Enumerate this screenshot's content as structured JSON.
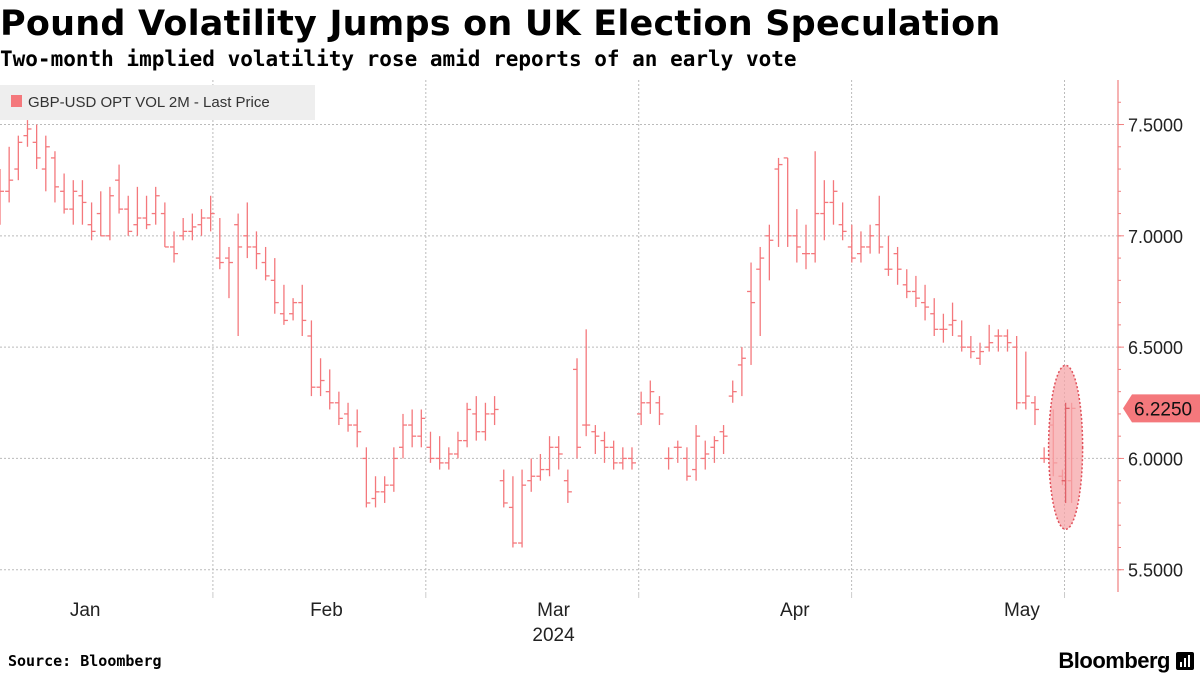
{
  "title": "Pound Volatility Jumps on UK Election Speculation",
  "subtitle": "Two-month implied volatility rose amid reports of an early vote",
  "source": "Source: Bloomberg",
  "brand": "Bloomberg",
  "colors": {
    "series": "#f4787c",
    "legend_bg": "#eeeeee",
    "grid": "#bbbbbb",
    "axis": "#f08080",
    "label_bg": "#f4787c",
    "highlight": "#f5a5a8"
  },
  "chart_data": {
    "type": "bar",
    "subtype": "ohlc",
    "title": "Pound Volatility Jumps on UK Election Speculation",
    "legend": [
      "GBP-USD OPT VOL 2M - Last Price"
    ],
    "legend_position": "top-left",
    "xlabel": "2024",
    "x_ticks": [
      "Jan",
      "Feb",
      "Mar",
      "Apr",
      "May"
    ],
    "y_ticks": [
      "5.5000",
      "6.0000",
      "6.5000",
      "7.0000",
      "7.5000"
    ],
    "ylim": [
      5.4,
      7.7
    ],
    "y_axis_side": "right",
    "last_price_label": "6.2250",
    "last_value": 6.225,
    "highlight": "latest session circled",
    "series": [
      {
        "name": "GBP-USD OPT VOL 2M - Last Price",
        "ohlc": [
          [
            7.1,
            7.3,
            7.05,
            7.2
          ],
          [
            7.2,
            7.4,
            7.15,
            7.25
          ],
          [
            7.3,
            7.45,
            7.25,
            7.42
          ],
          [
            7.45,
            7.52,
            7.4,
            7.48
          ],
          [
            7.42,
            7.5,
            7.3,
            7.35
          ],
          [
            7.3,
            7.45,
            7.2,
            7.4
          ],
          [
            7.35,
            7.38,
            7.15,
            7.22
          ],
          [
            7.2,
            7.28,
            7.1,
            7.12
          ],
          [
            7.12,
            7.25,
            7.05,
            7.2
          ],
          [
            7.18,
            7.25,
            7.05,
            7.15
          ],
          [
            7.05,
            7.15,
            6.98,
            7.02
          ],
          [
            7.1,
            7.2,
            7.0,
            7.0
          ],
          [
            7.0,
            7.22,
            6.98,
            7.18
          ],
          [
            7.25,
            7.32,
            7.1,
            7.12
          ],
          [
            7.12,
            7.18,
            7.0,
            7.02
          ],
          [
            7.05,
            7.22,
            7.0,
            7.08
          ],
          [
            7.08,
            7.18,
            7.03,
            7.05
          ],
          [
            7.1,
            7.22,
            7.05,
            7.18
          ],
          [
            7.1,
            7.15,
            6.95,
            6.95
          ],
          [
            6.95,
            7.02,
            6.88,
            6.92
          ],
          [
            7.0,
            7.08,
            6.98,
            7.02
          ],
          [
            7.02,
            7.1,
            6.98,
            7.04
          ],
          [
            7.05,
            7.12,
            7.0,
            7.08
          ],
          [
            7.08,
            7.18,
            7.02,
            7.1
          ],
          [
            6.9,
            7.08,
            6.85,
            6.88
          ],
          [
            6.9,
            6.95,
            6.72,
            6.88
          ],
          [
            7.05,
            7.1,
            6.55,
            6.95
          ],
          [
            7.0,
            7.15,
            6.9,
            6.95
          ],
          [
            6.95,
            7.02,
            6.85,
            6.92
          ],
          [
            6.88,
            6.95,
            6.8,
            6.82
          ],
          [
            6.8,
            6.9,
            6.65,
            6.7
          ],
          [
            6.65,
            6.78,
            6.6,
            6.62
          ],
          [
            6.65,
            6.72,
            6.62,
            6.7
          ],
          [
            6.7,
            6.78,
            6.55,
            6.62
          ],
          [
            6.55,
            6.62,
            6.28,
            6.32
          ],
          [
            6.32,
            6.45,
            6.28,
            6.35
          ],
          [
            6.3,
            6.4,
            6.22,
            6.25
          ],
          [
            6.25,
            6.3,
            6.15,
            6.18
          ],
          [
            6.2,
            6.25,
            6.12,
            6.15
          ],
          [
            6.15,
            6.22,
            6.05,
            6.12
          ],
          [
            6.0,
            6.05,
            5.78,
            5.8
          ],
          [
            5.82,
            5.92,
            5.78,
            5.85
          ],
          [
            5.85,
            5.92,
            5.8,
            5.88
          ],
          [
            5.88,
            6.05,
            5.85,
            6.0
          ],
          [
            6.05,
            6.2,
            6.0,
            6.15
          ],
          [
            6.15,
            6.22,
            6.05,
            6.1
          ],
          [
            6.1,
            6.22,
            6.05,
            6.18
          ],
          [
            6.05,
            6.12,
            5.98,
            6.0
          ],
          [
            6.0,
            6.1,
            5.95,
            5.98
          ],
          [
            5.98,
            6.05,
            5.95,
            6.02
          ],
          [
            6.02,
            6.12,
            6.0,
            6.08
          ],
          [
            6.08,
            6.25,
            6.05,
            6.22
          ],
          [
            6.2,
            6.28,
            6.08,
            6.12
          ],
          [
            6.12,
            6.25,
            6.08,
            6.2
          ],
          [
            6.2,
            6.28,
            6.15,
            6.22
          ],
          [
            5.9,
            5.95,
            5.78,
            5.8
          ],
          [
            5.78,
            5.92,
            5.6,
            5.62
          ],
          [
            5.62,
            5.95,
            5.6,
            5.88
          ],
          [
            5.9,
            6.0,
            5.85,
            5.92
          ],
          [
            5.92,
            6.02,
            5.9,
            5.95
          ],
          [
            5.95,
            6.1,
            5.92,
            6.05
          ],
          [
            6.05,
            6.1,
            5.95,
            6.02
          ],
          [
            5.9,
            5.95,
            5.8,
            5.85
          ],
          [
            6.4,
            6.45,
            6.0,
            6.05
          ],
          [
            6.15,
            6.58,
            6.1,
            6.15
          ],
          [
            6.12,
            6.15,
            6.02,
            6.1
          ],
          [
            6.08,
            6.12,
            5.98,
            6.05
          ],
          [
            6.05,
            6.08,
            5.95,
            5.98
          ],
          [
            5.98,
            6.05,
            5.95,
            6.0
          ],
          [
            6.0,
            6.05,
            5.95,
            5.98
          ],
          [
            6.2,
            6.3,
            6.15,
            6.25
          ],
          [
            6.25,
            6.35,
            6.2,
            6.3
          ],
          [
            6.25,
            6.28,
            6.15,
            6.2
          ],
          [
            6.0,
            6.05,
            5.95,
            6.0
          ],
          [
            6.05,
            6.08,
            5.98,
            6.05
          ],
          [
            6.0,
            6.05,
            5.9,
            5.92
          ],
          [
            5.95,
            6.15,
            5.9,
            6.1
          ],
          [
            6.0,
            6.08,
            5.95,
            6.02
          ],
          [
            6.05,
            6.1,
            5.98,
            6.08
          ],
          [
            6.12,
            6.15,
            6.02,
            6.1
          ],
          [
            6.28,
            6.35,
            6.25,
            6.3
          ],
          [
            6.42,
            6.5,
            6.28,
            6.45
          ],
          [
            6.75,
            6.88,
            6.42,
            6.7
          ],
          [
            6.85,
            6.95,
            6.55,
            6.9
          ],
          [
            7.0,
            7.05,
            6.8,
            6.98
          ],
          [
            7.3,
            7.35,
            6.95,
            7.32
          ],
          [
            7.35,
            7.35,
            6.95,
            7.0
          ],
          [
            7.0,
            7.12,
            6.88,
            6.95
          ],
          [
            6.92,
            7.05,
            6.85,
            6.92
          ],
          [
            6.92,
            7.38,
            6.88,
            7.1
          ],
          [
            7.1,
            7.25,
            6.98,
            7.15
          ],
          [
            7.15,
            7.25,
            7.05,
            7.2
          ],
          [
            7.05,
            7.15,
            6.98,
            7.02
          ],
          [
            6.95,
            7.05,
            6.88,
            6.9
          ],
          [
            6.92,
            7.02,
            6.88,
            6.95
          ],
          [
            6.95,
            7.05,
            6.92,
            7.0
          ],
          [
            7.05,
            7.18,
            6.92,
            6.95
          ],
          [
            6.85,
            7.0,
            6.82,
            6.85
          ],
          [
            6.92,
            6.95,
            6.78,
            6.85
          ],
          [
            6.78,
            6.85,
            6.72,
            6.75
          ],
          [
            6.75,
            6.82,
            6.68,
            6.72
          ],
          [
            6.7,
            6.78,
            6.62,
            6.68
          ],
          [
            6.65,
            6.72,
            6.55,
            6.58
          ],
          [
            6.58,
            6.65,
            6.52,
            6.58
          ],
          [
            6.6,
            6.7,
            6.55,
            6.62
          ],
          [
            6.55,
            6.62,
            6.48,
            6.5
          ],
          [
            6.5,
            6.55,
            6.45,
            6.48
          ],
          [
            6.45,
            6.52,
            6.42,
            6.48
          ],
          [
            6.5,
            6.6,
            6.48,
            6.52
          ],
          [
            6.55,
            6.58,
            6.48,
            6.55
          ],
          [
            6.55,
            6.58,
            6.48,
            6.52
          ],
          [
            6.5,
            6.55,
            6.22,
            6.25
          ],
          [
            6.25,
            6.48,
            6.22,
            6.28
          ],
          [
            6.25,
            6.28,
            6.15,
            6.22
          ],
          [
            6.0,
            6.05,
            5.98,
            6.0
          ],
          [
            6.15,
            6.22,
            5.92,
            5.98
          ],
          [
            5.92,
            5.95,
            5.88,
            5.9
          ],
          [
            5.9,
            6.25,
            5.8,
            6.225
          ]
        ],
        "x_positions": [
          0,
          7,
          14,
          21,
          28,
          35,
          42,
          49,
          56,
          63,
          70,
          77,
          84,
          91,
          98,
          105,
          112,
          119,
          126,
          133,
          140,
          147,
          154,
          161,
          168,
          175,
          182,
          189,
          196,
          203,
          210,
          217,
          224,
          231,
          238,
          245,
          252,
          259,
          266,
          273,
          280,
          287,
          294,
          301,
          308,
          315,
          322,
          329,
          336,
          343,
          350,
          357,
          364,
          371,
          378,
          385,
          392,
          399,
          406,
          413,
          420,
          427,
          434,
          441,
          448,
          455,
          462,
          469,
          476,
          483,
          490,
          497,
          504,
          511,
          518,
          525,
          532,
          539,
          546,
          553,
          560,
          567,
          574,
          581,
          588,
          595,
          602,
          609,
          616,
          623,
          630,
          637,
          644,
          651,
          658,
          665,
          672,
          679,
          686,
          693,
          700,
          707,
          714,
          721,
          728,
          735,
          742,
          749,
          756,
          763,
          770,
          777,
          784,
          791,
          798,
          805,
          812,
          819,
          826,
          833
        ],
        "x_ticks_days": [
          12,
          46,
          78,
          112,
          144
        ],
        "x_sep_days": [
          30,
          60,
          90,
          120,
          150
        ]
      }
    ]
  }
}
